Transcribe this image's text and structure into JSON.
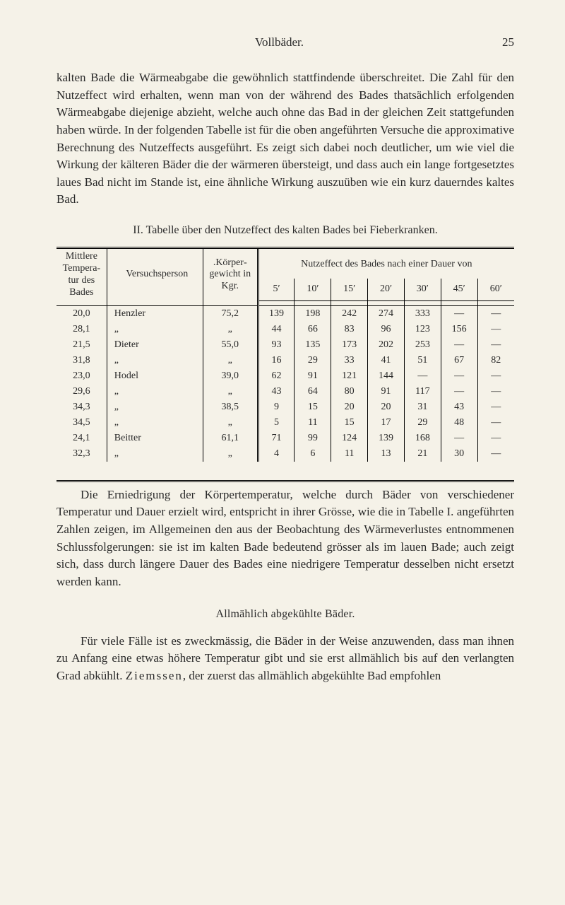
{
  "running_head": {
    "title": "Vollbäder.",
    "page": "25"
  },
  "para1": "kalten Bade die Wärmeabgabe die gewöhnlich stattfindende über­schreitet. Die Zahl für den Nutzeffect wird erhalten, wenn man von der während des Bades thatsächlich erfolgenden Wärmeabgabe diejenige abzieht, welche auch ohne das Bad in der gleichen Zeit stattgefunden haben würde. In der folgenden Tabelle ist für die oben angeführten Versuche die approximative Berechnung des Nutz­effects ausgeführt. Es zeigt sich dabei noch deutlicher, um wie viel die Wirkung der kälteren Bäder die der wärmeren übersteigt, und dass auch ein lange fortgesetztes laues Bad nicht im Stande ist, eine ähnliche Wirkung auszuüben wie ein kurz dauerndes kal­tes Bad.",
  "table": {
    "caption": "II. Tabelle über den Nutzeffect des kalten Bades bei Fieberkranken.",
    "head": {
      "col1": "Mittlere Tempera­tur des Bades",
      "col2": "Versuchsperson",
      "col3": ".Körper­gewicht in Kgr.",
      "span_title": "Nutzeffect des Bades nach einer Dauer von",
      "durs": [
        "5′",
        "10′",
        "15′",
        "20′",
        "30′",
        "45′",
        "60′"
      ]
    },
    "groups": [
      {
        "rows": [
          {
            "t": "20,0",
            "p": "Henzler",
            "g": "75,2",
            "v": [
              "139",
              "198",
              "242",
              "274",
              "333",
              "—",
              "—"
            ]
          },
          {
            "t": "28,1",
            "p": "„",
            "g": "„",
            "v": [
              "44",
              "66",
              "83",
              "96",
              "123",
              "156",
              "—"
            ]
          }
        ]
      },
      {
        "rows": [
          {
            "t": "21,5",
            "p": "Dieter",
            "g": "55,0",
            "v": [
              "93",
              "135",
              "173",
              "202",
              "253",
              "—",
              "—"
            ]
          },
          {
            "t": "31,8",
            "p": "„",
            "g": "„",
            "v": [
              "16",
              "29",
              "33",
              "41",
              "51",
              "67",
              "82"
            ]
          }
        ]
      },
      {
        "rows": [
          {
            "t": "23,0",
            "p": "Hodel",
            "g": "39,0",
            "v": [
              "62",
              "91",
              "121",
              "144",
              "—",
              "—",
              "—"
            ]
          },
          {
            "t": "29,6",
            "p": "„",
            "g": "„",
            "v": [
              "43",
              "64",
              "80",
              "91",
              "117",
              "—",
              "—"
            ]
          },
          {
            "t": "34,3",
            "p": "„",
            "g": "38,5",
            "v": [
              "9",
              "15",
              "20",
              "20",
              "31",
              "43",
              "—"
            ]
          },
          {
            "t": "34,5",
            "p": "„",
            "g": "„",
            "v": [
              "5",
              "11",
              "15",
              "17",
              "29",
              "48",
              "—"
            ]
          }
        ]
      },
      {
        "rows": [
          {
            "t": "24,1",
            "p": "Beitter",
            "g": "61,1",
            "v": [
              "71",
              "99",
              "124",
              "139",
              "168",
              "—",
              "—"
            ]
          },
          {
            "t": "32,3",
            "p": "„",
            "g": "„",
            "v": [
              "4",
              "6",
              "11",
              "13",
              "21",
              "30",
              "—"
            ]
          }
        ]
      }
    ]
  },
  "para2": "Die Erniedrigung der Körpertemperatur, welche durch Bäder von verschiedener Temperatur und Dauer erzielt wird, entspricht in ihrer Grösse, wie die in Tabelle I. angeführten Zahlen zeigen, im Allge­meinen den aus der Beobachtung des Wärmeverlustes entnommenen Schlussfolgerungen: sie ist im kalten Bade bedeutend grösser als im lauen Bade; auch zeigt sich, dass durch längere Dauer des Bades eine niedrigere Temperatur desselben nicht ersetzt werden kann.",
  "section_head": "Allmählich abgekühlte Bäder.",
  "para3_pre": "Für viele Fälle ist es zweckmässig, die Bäder in der Weise an­zuwenden, dass man ihnen zu Anfang eine etwas höhere Temperatur gibt und sie erst allmählich bis auf den verlangten Grad abkühlt. ",
  "para3_name": "Ziemssen",
  "para3_post": ", der zuerst das allmählich abgekühlte Bad empfohlen"
}
